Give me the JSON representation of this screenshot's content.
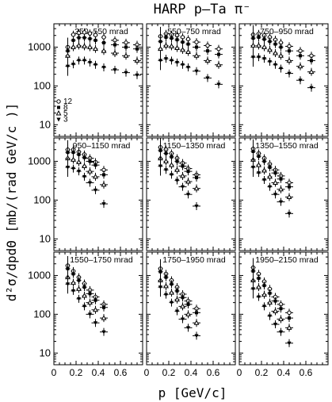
{
  "figure": {
    "title": "HARP p–Ta π⁻",
    "xlabel": "p [GeV/c]",
    "ylabel": "d²σ/dpdΘ [mb/(rad GeV/c )]"
  },
  "chart_data": {
    "type": "scatter",
    "title": "HARP p–Ta π⁻",
    "xlabel": "p [GeV/c]",
    "ylabel": "d²σ/dpdΘ [mb/(rad GeV/c )]",
    "xlim": [
      0,
      0.8
    ],
    "ylim": [
      5,
      4000
    ],
    "yscale": "log",
    "xticks": [
      "0",
      "0.2",
      "0.4",
      "0.6"
    ],
    "yticks": [
      "10",
      "100",
      "1000"
    ],
    "grid": false,
    "legend": {
      "placement": "bottom-left of first panel",
      "entries": [
        "12",
        "8",
        "5",
        "3"
      ],
      "markers": [
        "open-circle",
        "filled-square",
        "open-triangle",
        "filled-triangle-down"
      ]
    },
    "panels": [
      {
        "label": "350–550  mrad",
        "x": [
          0.125,
          0.175,
          0.225,
          0.275,
          0.325,
          0.375,
          0.45,
          0.55,
          0.65,
          0.75
        ],
        "series": [
          {
            "marker": "open-circle",
            "values": [
              1000,
              2100,
              2300,
              2400,
              2250,
              2050,
              1800,
              1500,
              1300,
              1150
            ]
          },
          {
            "marker": "filled-square",
            "values": [
              800,
              1500,
              1750,
              1750,
              1650,
              1500,
              1300,
              1150,
              1000,
              900
            ]
          },
          {
            "marker": "open-triangle",
            "values": [
              600,
              1000,
              1100,
              1050,
              1000,
              900,
              800,
              700,
              600,
              450
            ]
          },
          {
            "marker": "filled-triangle-down",
            "values": [
              320,
              360,
              450,
              450,
              400,
              350,
              300,
              260,
              220,
              190
            ]
          }
        ]
      },
      {
        "label": "550–750  mrad",
        "x": [
          0.125,
          0.175,
          0.225,
          0.275,
          0.325,
          0.375,
          0.45,
          0.55,
          0.65
        ],
        "series": [
          {
            "marker": "open-circle",
            "values": [
              1900,
              2200,
              2100,
              2000,
              1800,
              1600,
              1350,
              1100,
              900
            ]
          },
          {
            "marker": "filled-square",
            "values": [
              1400,
              1800,
              1700,
              1550,
              1350,
              1200,
              1000,
              800,
              650
            ]
          },
          {
            "marker": "open-triangle",
            "values": [
              900,
              1100,
              1050,
              950,
              850,
              750,
              600,
              450,
              350
            ]
          },
          {
            "marker": "filled-triangle-down",
            "values": [
              450,
              500,
              450,
              400,
              350,
              300,
              240,
              160,
              110
            ]
          }
        ]
      },
      {
        "label": "750–950  mrad",
        "x": [
          0.125,
          0.175,
          0.225,
          0.275,
          0.325,
          0.375,
          0.45,
          0.55,
          0.65
        ],
        "series": [
          {
            "marker": "open-circle",
            "values": [
              2100,
              2200,
              2000,
              1800,
              1550,
              1300,
              1050,
              800,
              600
            ]
          },
          {
            "marker": "filled-square",
            "values": [
              1700,
              1800,
              1600,
              1400,
              1200,
              1000,
              800,
              600,
              450
            ]
          },
          {
            "marker": "open-triangle",
            "values": [
              1100,
              1100,
              1000,
              850,
              700,
              600,
              450,
              320,
              230
            ]
          },
          {
            "marker": "filled-triangle-down",
            "values": [
              550,
              550,
              500,
              420,
              350,
              280,
              210,
              140,
              90
            ]
          }
        ]
      },
      {
        "label": "950–1150  mrad",
        "x": [
          0.125,
          0.175,
          0.225,
          0.275,
          0.325,
          0.375,
          0.45
        ],
        "series": [
          {
            "marker": "open-circle",
            "values": [
              2000,
              2000,
              1750,
              1500,
              1200,
              950,
              600
            ]
          },
          {
            "marker": "filled-square",
            "values": [
              1700,
              1700,
              1500,
              1250,
              1000,
              800,
              450
            ]
          },
          {
            "marker": "open-triangle",
            "values": [
              1200,
              1100,
              950,
              750,
              550,
              400,
              250
            ]
          },
          {
            "marker": "filled-triangle-down",
            "values": [
              700,
              650,
              550,
              400,
              280,
              180,
              80
            ]
          }
        ]
      },
      {
        "label": "1150–1350  mrad",
        "x": [
          0.125,
          0.175,
          0.225,
          0.275,
          0.325,
          0.375,
          0.45
        ],
        "series": [
          {
            "marker": "open-circle",
            "values": [
              2300,
              2000,
              1600,
              1200,
              900,
              650,
              450
            ]
          },
          {
            "marker": "filled-square",
            "values": [
              1900,
              1600,
              1300,
              1000,
              750,
              550,
              380
            ]
          },
          {
            "marker": "open-triangle",
            "values": [
              1200,
              1000,
              800,
              600,
              420,
              300,
              200
            ]
          },
          {
            "marker": "filled-triangle-down",
            "values": [
              750,
              600,
              450,
              320,
              220,
              140,
              70
            ]
          }
        ]
      },
      {
        "label": "1350–1550  mrad",
        "x": [
          0.125,
          0.175,
          0.225,
          0.275,
          0.325,
          0.375,
          0.45
        ],
        "series": [
          {
            "marker": "open-circle",
            "values": [
              2100,
              1600,
              1200,
              850,
              600,
              420,
              280
            ]
          },
          {
            "marker": "filled-square",
            "values": [
              1800,
              1350,
              1000,
              700,
              500,
              350,
              220
            ]
          },
          {
            "marker": "open-triangle",
            "values": [
              1100,
              800,
              580,
              400,
              280,
              190,
              120
            ]
          },
          {
            "marker": "filled-triangle-down",
            "values": [
              700,
              500,
              330,
              220,
              140,
              90,
              45
            ]
          }
        ]
      },
      {
        "label": "1550–1750  mrad",
        "x": [
          0.125,
          0.175,
          0.225,
          0.275,
          0.325,
          0.375,
          0.45
        ],
        "series": [
          {
            "marker": "open-circle",
            "values": [
              1800,
              1300,
              900,
              620,
              420,
              280,
              180
            ]
          },
          {
            "marker": "filled-square",
            "values": [
              1500,
              1100,
              750,
              500,
              340,
              230,
              150
            ]
          },
          {
            "marker": "open-triangle",
            "values": [
              900,
              650,
              450,
              300,
              200,
              130,
              80
            ]
          },
          {
            "marker": "filled-triangle-down",
            "values": [
              600,
              400,
              250,
              160,
              100,
              60,
              35
            ]
          }
        ]
      },
      {
        "label": "1750–1950  mrad",
        "x": [
          0.125,
          0.175,
          0.225,
          0.275,
          0.325,
          0.375,
          0.45
        ],
        "series": [
          {
            "marker": "open-circle",
            "values": [
              1500,
              1100,
              750,
              500,
              330,
              220,
              140
            ]
          },
          {
            "marker": "filled-square",
            "values": [
              1250,
              900,
              600,
              400,
              270,
              180,
              110
            ]
          },
          {
            "marker": "open-triangle",
            "values": [
              750,
              530,
              360,
              240,
              160,
              100,
              60
            ]
          },
          {
            "marker": "filled-triangle-down",
            "values": [
              500,
              320,
              200,
              120,
              75,
              45,
              28
            ]
          }
        ]
      },
      {
        "label": "1950–2150  mrad",
        "x": [
          0.125,
          0.175,
          0.225,
          0.275,
          0.325,
          0.375,
          0.45
        ],
        "series": [
          {
            "marker": "open-circle",
            "values": [
              1600,
              1100,
              700,
              450,
              280,
              180,
              110
            ]
          },
          {
            "marker": "filled-square",
            "values": [
              1300,
              850,
              550,
              350,
              220,
              140,
              80
            ]
          },
          {
            "marker": "open-triangle",
            "values": [
              750,
              500,
              320,
              200,
              120,
              75,
              45
            ]
          },
          {
            "marker": "filled-triangle-down",
            "values": [
              450,
              280,
              160,
              90,
              55,
              35,
              18
            ]
          }
        ]
      }
    ]
  }
}
